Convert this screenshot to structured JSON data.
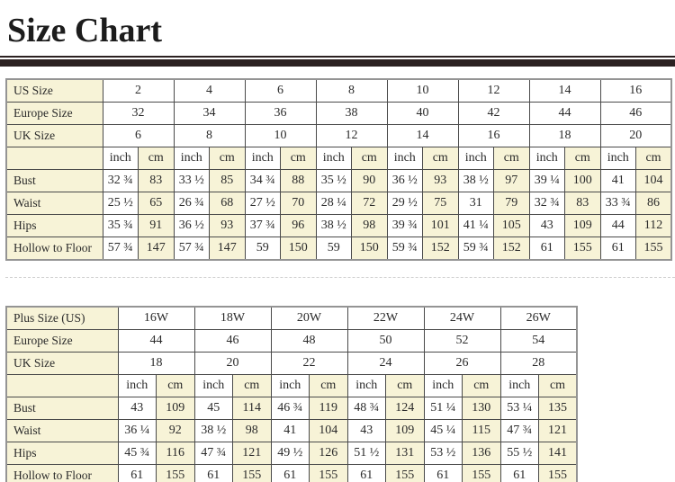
{
  "page": {
    "title": "Size Chart"
  },
  "colors": {
    "cream_cell": "#f7f3d7",
    "cell_border": "#4a4a4a",
    "outer_border": "#949494",
    "divider_rule": "#2b2121",
    "text": "#2b2b2b"
  },
  "tables": [
    {
      "name": "standard-size-table",
      "units": [
        "inch",
        "cm"
      ],
      "size_rows": [
        {
          "label": "US Size",
          "values": [
            "2",
            "4",
            "6",
            "8",
            "10",
            "12",
            "14",
            "16"
          ]
        },
        {
          "label": "Europe Size",
          "values": [
            "32",
            "34",
            "36",
            "38",
            "40",
            "42",
            "44",
            "46"
          ]
        },
        {
          "label": "UK Size",
          "values": [
            "6",
            "8",
            "10",
            "12",
            "14",
            "16",
            "18",
            "20"
          ]
        }
      ],
      "measure_rows": [
        {
          "label": "Bust",
          "values": [
            "32 ¾",
            "83",
            "33 ½",
            "85",
            "34 ¾",
            "88",
            "35 ½",
            "90",
            "36 ½",
            "93",
            "38 ½",
            "97",
            "39 ¼",
            "100",
            "41",
            "104"
          ]
        },
        {
          "label": "Waist",
          "values": [
            "25 ½",
            "65",
            "26 ¾",
            "68",
            "27 ½",
            "70",
            "28 ¼",
            "72",
            "29 ½",
            "75",
            "31",
            "79",
            "32 ¾",
            "83",
            "33 ¾",
            "86"
          ]
        },
        {
          "label": "Hips",
          "values": [
            "35 ¾",
            "91",
            "36 ½",
            "93",
            "37 ¾",
            "96",
            "38 ½",
            "98",
            "39 ¾",
            "101",
            "41 ¼",
            "105",
            "43",
            "109",
            "44",
            "112"
          ]
        },
        {
          "label": "Hollow to Floor",
          "values": [
            "57 ¾",
            "147",
            "57 ¾",
            "147",
            "59",
            "150",
            "59",
            "150",
            "59 ¾",
            "152",
            "59 ¾",
            "152",
            "61",
            "155",
            "61",
            "155"
          ]
        }
      ]
    },
    {
      "name": "plus-size-table",
      "units": [
        "inch",
        "cm"
      ],
      "size_rows": [
        {
          "label": "Plus Size (US)",
          "values": [
            "16W",
            "18W",
            "20W",
            "22W",
            "24W",
            "26W"
          ]
        },
        {
          "label": "Europe Size",
          "values": [
            "44",
            "46",
            "48",
            "50",
            "52",
            "54"
          ]
        },
        {
          "label": "UK Size",
          "values": [
            "18",
            "20",
            "22",
            "24",
            "26",
            "28"
          ]
        }
      ],
      "measure_rows": [
        {
          "label": "Bust",
          "values": [
            "43",
            "109",
            "45",
            "114",
            "46 ¾",
            "119",
            "48 ¾",
            "124",
            "51 ¼",
            "130",
            "53 ¼",
            "135"
          ]
        },
        {
          "label": "Waist",
          "values": [
            "36 ¼",
            "92",
            "38 ½",
            "98",
            "41",
            "104",
            "43",
            "109",
            "45 ¼",
            "115",
            "47 ¾",
            "121"
          ]
        },
        {
          "label": "Hips",
          "values": [
            "45 ¾",
            "116",
            "47 ¾",
            "121",
            "49 ½",
            "126",
            "51 ½",
            "131",
            "53 ½",
            "136",
            "55 ½",
            "141"
          ]
        },
        {
          "label": "Hollow to Floor",
          "values": [
            "61",
            "155",
            "61",
            "155",
            "61",
            "155",
            "61",
            "155",
            "61",
            "155",
            "61",
            "155"
          ]
        }
      ]
    }
  ]
}
